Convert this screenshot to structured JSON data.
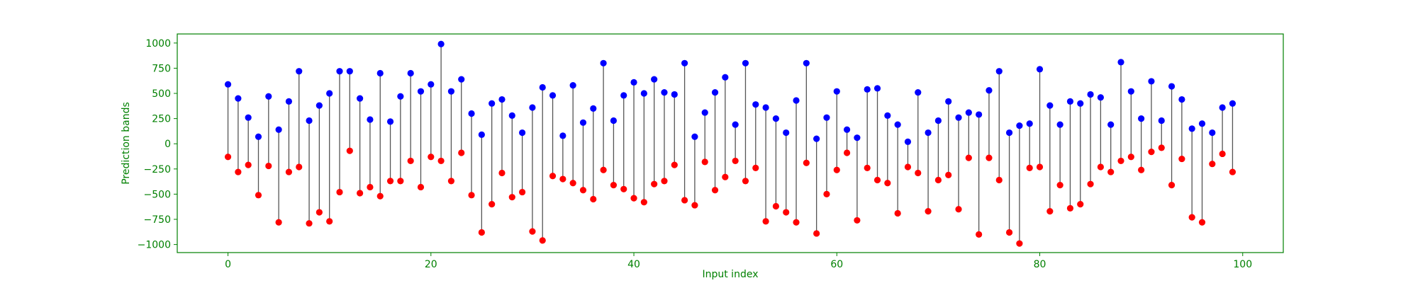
{
  "chart_data": {
    "type": "scatter",
    "subtype": "lollipop-range",
    "title": "",
    "xlabel": "Input index",
    "ylabel": "Prediction bands",
    "xlim": [
      -5,
      104
    ],
    "ylim": [
      -1080,
      1090
    ],
    "x_ticks": [
      0,
      20,
      40,
      60,
      80,
      100
    ],
    "y_ticks": [
      -1000,
      -750,
      -500,
      -250,
      0,
      250,
      500,
      750,
      1000
    ],
    "grid": false,
    "legend": "none",
    "colors": {
      "upper": "#0000ff",
      "lower": "#ff0000",
      "stem": "#555555",
      "axis": "#008000"
    },
    "x": [
      0,
      1,
      2,
      3,
      4,
      5,
      6,
      7,
      8,
      9,
      10,
      11,
      12,
      13,
      14,
      15,
      16,
      17,
      18,
      19,
      20,
      21,
      22,
      23,
      24,
      25,
      26,
      27,
      28,
      29,
      30,
      31,
      32,
      33,
      34,
      35,
      36,
      37,
      38,
      39,
      40,
      41,
      42,
      43,
      44,
      45,
      46,
      47,
      48,
      49,
      50,
      51,
      52,
      53,
      54,
      55,
      56,
      57,
      58,
      59,
      60,
      61,
      62,
      63,
      64,
      65,
      66,
      67,
      68,
      69,
      70,
      71,
      72,
      73,
      74,
      75,
      76,
      77,
      78,
      79,
      80,
      81,
      82,
      83,
      84,
      85,
      86,
      87,
      88,
      89,
      90,
      91,
      92,
      93,
      94,
      95,
      96,
      97,
      98,
      99
    ],
    "series": [
      {
        "values": [
          590,
          450,
          260,
          70,
          470,
          140,
          420,
          720,
          230,
          380,
          500,
          720,
          720,
          450,
          240,
          700,
          220,
          470,
          700,
          520,
          590,
          990,
          520,
          640,
          300,
          90,
          400,
          440,
          280,
          110,
          360,
          560,
          480,
          80,
          580,
          210,
          350,
          800,
          230,
          480,
          610,
          500,
          640,
          510,
          490,
          800,
          70,
          310,
          510,
          660,
          190,
          800,
          390,
          360,
          250,
          110,
          430,
          800,
          50,
          260,
          520,
          140,
          60,
          540,
          550,
          280,
          190,
          20,
          510,
          110,
          230,
          420,
          260,
          310,
          290,
          530,
          720,
          110,
          180,
          200,
          740,
          380,
          190,
          420,
          400,
          490,
          460,
          190,
          810,
          520,
          250,
          620,
          230,
          570,
          440,
          150,
          200,
          110,
          360,
          400
        ]
      },
      {
        "values": [
          -130,
          -280,
          -210,
          -510,
          -220,
          -780,
          -280,
          -230,
          -790,
          -680,
          -770,
          -480,
          -70,
          -490,
          -430,
          -520,
          -370,
          -370,
          -170,
          -430,
          -130,
          -170,
          -370,
          -90,
          -510,
          -880,
          -600,
          -290,
          -530,
          -480,
          -870,
          -960,
          -320,
          -350,
          -390,
          -460,
          -550,
          -260,
          -410,
          -450,
          -540,
          -580,
          -400,
          -370,
          -210,
          -560,
          -610,
          -180,
          -460,
          -330,
          -170,
          -370,
          -240,
          -770,
          -620,
          -680,
          -780,
          -190,
          -890,
          -500,
          -260,
          -90,
          -760,
          -240,
          -360,
          -390,
          -690,
          -230,
          -290,
          -670,
          -360,
          -310,
          -650,
          -140,
          -900,
          -140,
          -360,
          -880,
          -990,
          -240,
          -230,
          -670,
          -410,
          -640,
          -600,
          -400,
          -230,
          -280,
          -170,
          -130,
          -260,
          -80,
          -40,
          -410,
          -150,
          -730,
          -780,
          -200,
          -100,
          -280
        ]
      }
    ]
  }
}
